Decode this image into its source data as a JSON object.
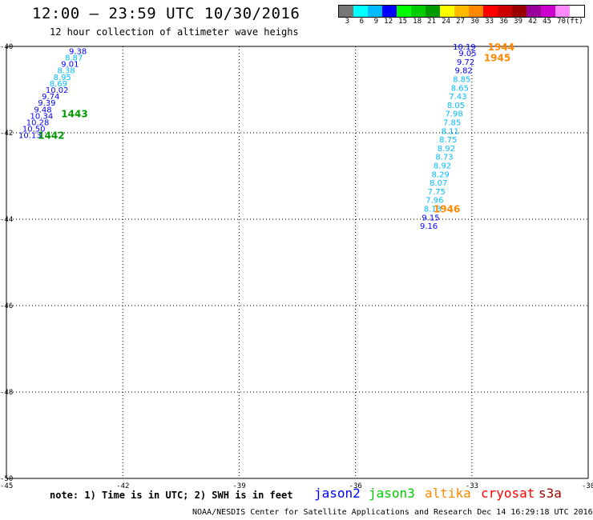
{
  "header": {
    "title": "12:00 – 23:59 UTC 10/30/2016",
    "subtitle": "12 hour collection of altimeter wave heighs"
  },
  "colorbar": {
    "colors": [
      "#777777",
      "#00ffff",
      "#00bbff",
      "#0000ff",
      "#00ff00",
      "#00cc00",
      "#009900",
      "#ffff00",
      "#ffbb00",
      "#ff8800",
      "#ff0000",
      "#cc0000",
      "#990000",
      "#990099",
      "#cc00cc",
      "#ff88ff",
      "#ffffff"
    ],
    "tick_labels": [
      "3",
      "6",
      "9",
      "12",
      "15",
      "18",
      "21",
      "24",
      "27",
      "30",
      "33",
      "36",
      "39",
      "42",
      "45",
      "70",
      "(ft)"
    ]
  },
  "chart_data": {
    "type": "scatter",
    "title": "12:00 – 23:59 UTC 10/30/2016",
    "subtitle": "12 hour collection of altimeter wave heighs",
    "units": "ft",
    "x_ticks": [
      "-45",
      "-42",
      "-39",
      "-36",
      "-33",
      "-30"
    ],
    "y_ticks": [
      "-40",
      "-42",
      "-44",
      "-46",
      "-48",
      "-50"
    ],
    "xlim": [
      -45,
      -30
    ],
    "ylim": [
      -50,
      -40
    ],
    "legend_placement": "bottom",
    "series": [
      {
        "name": "jason2",
        "color": "#0000ff"
      },
      {
        "name": "jason3",
        "color": "#00cc00"
      },
      {
        "name": "altika",
        "color": "#ff8800"
      },
      {
        "name": "cryosat",
        "color": "#ff0000"
      },
      {
        "name": "s3a",
        "color": "#990000"
      }
    ],
    "tracks": [
      {
        "points": [
          [
            -43.1,
            -40.1,
            "9.38",
            "#0000ff"
          ],
          [
            -43.2,
            -40.25,
            "8.87",
            "#00bbff"
          ],
          [
            -43.3,
            -40.4,
            "9.01",
            "#0000ff"
          ],
          [
            -43.4,
            -40.55,
            "8.38",
            "#00bbff"
          ],
          [
            -43.5,
            -40.7,
            "8.95",
            "#00bbff"
          ],
          [
            -43.6,
            -40.85,
            "8.69",
            "#00bbff"
          ],
          [
            -43.7,
            -41.0,
            "10.02",
            "#0000ff"
          ],
          [
            -43.8,
            -41.15,
            "9.74",
            "#0000ff"
          ],
          [
            -43.9,
            -41.3,
            "9.39",
            "#0000ff"
          ],
          [
            -44.0,
            -41.45,
            "9.48",
            "#0000ff"
          ],
          [
            -44.1,
            -41.6,
            "10.34",
            "#0000ff"
          ],
          [
            -44.2,
            -41.75,
            "10.28",
            "#0000ff"
          ],
          [
            -44.3,
            -41.9,
            "10.50",
            "#0000ff"
          ],
          [
            -44.4,
            -42.05,
            "10.13",
            "#0000ff"
          ]
        ],
        "pass_labels": [
          [
            -43.3,
            -41.55,
            "1443",
            "#009900"
          ],
          [
            -43.9,
            -42.05,
            "1442",
            "#009900"
          ]
        ]
      },
      {
        "points": [
          [
            -33.2,
            -40.0,
            "10.19",
            "#0000ff"
          ],
          [
            -33.05,
            -40.15,
            "9.05",
            "#0000ff"
          ],
          [
            -33.1,
            -40.35,
            "9.72",
            "#0000ff"
          ],
          [
            -33.15,
            -40.55,
            "9.82",
            "#0000ff"
          ],
          [
            -33.2,
            -40.75,
            "8.85",
            "#00bbff"
          ],
          [
            -33.25,
            -40.95,
            "8.65",
            "#00bbff"
          ],
          [
            -33.3,
            -41.15,
            "7.43",
            "#00bbff"
          ],
          [
            -33.35,
            -41.35,
            "8.05",
            "#00bbff"
          ],
          [
            -33.4,
            -41.55,
            "7.98",
            "#00bbff"
          ],
          [
            -33.45,
            -41.75,
            "7.85",
            "#00bbff"
          ],
          [
            -33.5,
            -41.95,
            "8.11",
            "#00bbff"
          ],
          [
            -33.55,
            -42.15,
            "8.75",
            "#00bbff"
          ],
          [
            -33.6,
            -42.35,
            "8.92",
            "#00bbff"
          ],
          [
            -33.65,
            -42.55,
            "8.73",
            "#00bbff"
          ],
          [
            -33.7,
            -42.75,
            "8.92",
            "#00bbff"
          ],
          [
            -33.75,
            -42.95,
            "8.29",
            "#00bbff"
          ],
          [
            -33.8,
            -43.15,
            "8.07",
            "#00bbff"
          ],
          [
            -33.85,
            -43.35,
            "7.75",
            "#00bbff"
          ],
          [
            -33.9,
            -43.55,
            "7.96",
            "#00bbff"
          ],
          [
            -33.95,
            -43.75,
            "8.13",
            "#00bbff"
          ],
          [
            -34.0,
            -43.95,
            "9.15",
            "#0000ff"
          ],
          [
            -34.05,
            -44.15,
            "9.16",
            "#0000ff"
          ]
        ],
        "pass_labels": [
          [
            -32.3,
            -40.0,
            "1944",
            "#ff8800"
          ],
          [
            -32.4,
            -40.25,
            "1945",
            "#ff8800"
          ],
          [
            -33.7,
            -43.75,
            "1946",
            "#ff8800"
          ]
        ]
      }
    ]
  },
  "note": "note: 1) Time is in UTC; 2) SWH is in feet",
  "legend": [
    {
      "name": "jason2",
      "color": "#0000ff"
    },
    {
      "name": "jason3",
      "color": "#00cc00"
    },
    {
      "name": "altika",
      "color": "#ff8800"
    },
    {
      "name": "cryosat",
      "color": "#ff0000"
    },
    {
      "name": "s3a",
      "color": "#990000"
    }
  ],
  "credit": "NOAA/NESDIS Center for Satellite Applications and Research   Dec 14 16:29:18 UTC 2016"
}
